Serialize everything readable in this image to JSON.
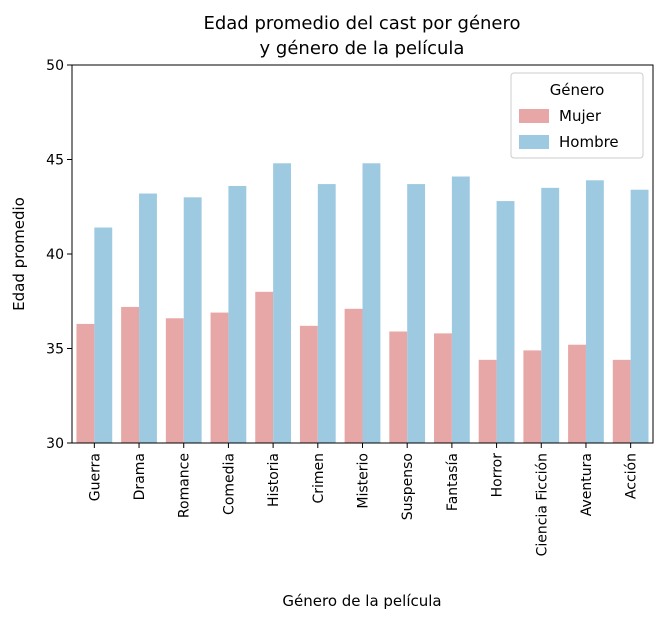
{
  "chart_data": {
    "type": "bar",
    "title_lines": [
      "Edad promedio del cast por género",
      "y género de la película"
    ],
    "xlabel": "Género de la película",
    "ylabel": "Edad promedio",
    "ylim": [
      30,
      50
    ],
    "yticks": [
      30,
      35,
      40,
      45,
      50
    ],
    "categories": [
      "Guerra",
      "Drama",
      "Romance",
      "Comedia",
      "Historia",
      "Crimen",
      "Misterio",
      "Suspenso",
      "Fantasía",
      "Horror",
      "Ciencia Ficción",
      "Aventura",
      "Acción"
    ],
    "legend": {
      "title": "Género",
      "placement": "top-right"
    },
    "series": [
      {
        "name": "Mujer",
        "color": "#e8a7a7",
        "values": [
          36.3,
          37.2,
          36.6,
          36.9,
          38.0,
          36.2,
          37.1,
          35.9,
          35.8,
          34.4,
          34.9,
          35.2,
          34.4
        ]
      },
      {
        "name": "Hombre",
        "color": "#9ecae1",
        "values": [
          41.4,
          43.2,
          43.0,
          43.6,
          44.8,
          43.7,
          44.8,
          43.7,
          44.1,
          42.8,
          43.5,
          43.9,
          43.4
        ]
      }
    ],
    "grid": false
  }
}
